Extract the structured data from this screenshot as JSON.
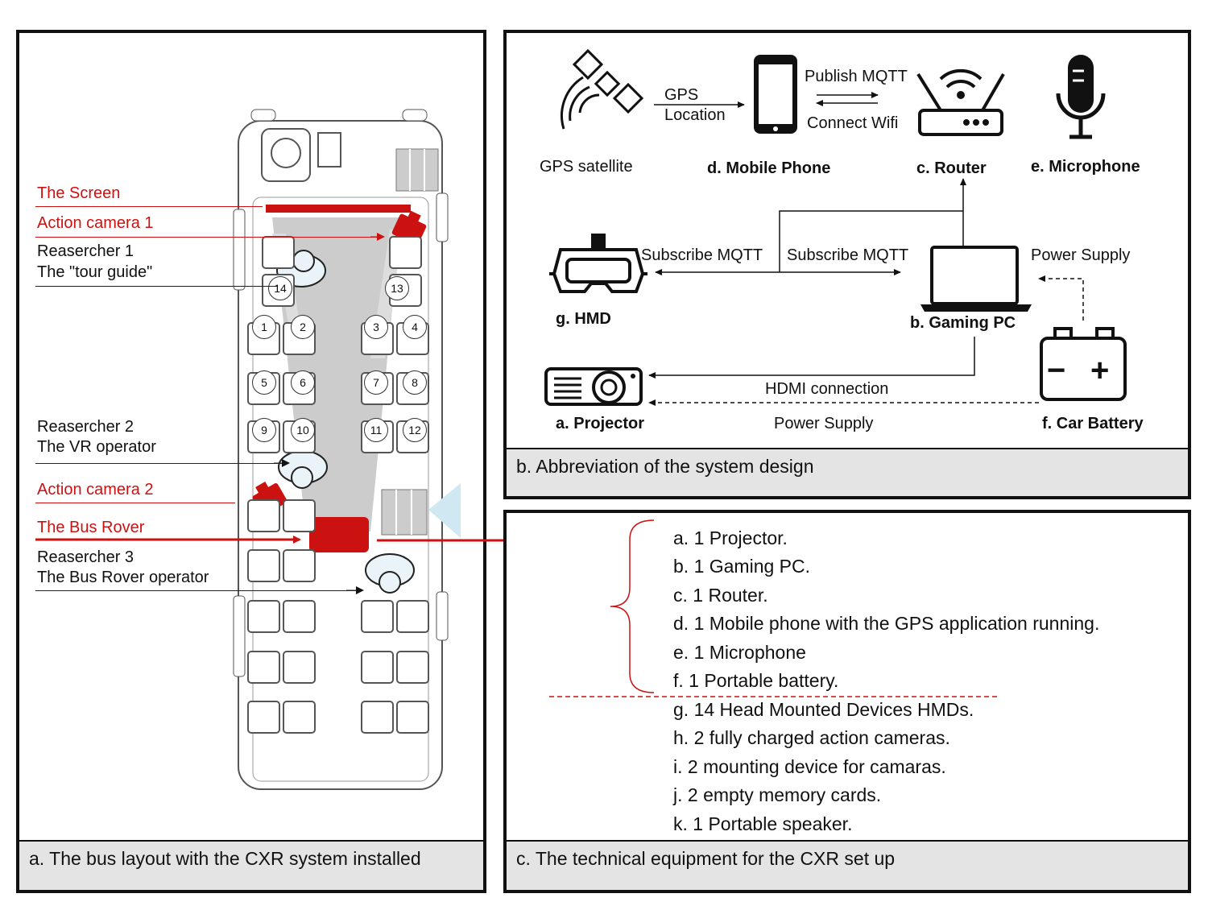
{
  "colors": {
    "accent_red": "#cc1111",
    "caption_bg": "#e4e4e4",
    "cone_gray": "#cccccc",
    "marker_blue": "#cfe8f2"
  },
  "panel_a": {
    "caption": "a. The bus layout with the CXR system installed",
    "labels": {
      "screen": "The Screen",
      "action_camera_1": "Action camera 1",
      "researcher_1_title": "Reasercher 1",
      "researcher_1_role": "The \"tour guide\"",
      "researcher_2_title": "Reasercher 2",
      "researcher_2_role": "The VR operator",
      "action_camera_2": "Action camera 2",
      "bus_rover": "The Bus Rover",
      "researcher_3_title": "Reasercher 3",
      "researcher_3_role": "The Bus Rover operator"
    },
    "seat_numbers": [
      "14",
      "13",
      "1",
      "2",
      "3",
      "4",
      "5",
      "6",
      "7",
      "8",
      "9",
      "10",
      "11",
      "12"
    ]
  },
  "panel_b": {
    "caption": "b. Abbreviation of the system design",
    "nodes": {
      "satellite": "GPS satellite",
      "phone": "d. Mobile Phone",
      "router": "c. Router",
      "microphone": "e. Microphone",
      "hmd": "g. HMD",
      "gaming_pc": "b. Gaming PC",
      "projector": "a. Projector",
      "battery": "f. Car Battery"
    },
    "edges": {
      "gps_line1": "GPS",
      "gps_line2": "Location",
      "publish": "Publish MQTT",
      "connect": "Connect Wifi",
      "subscribe_left": "Subscribe MQTT",
      "subscribe_right": "Subscribe MQTT",
      "power_supply_pc": "Power Supply",
      "hdmi": "HDMI connection",
      "power_supply_projector": "Power Supply"
    },
    "battery_symbols": {
      "minus": "−",
      "plus": "+"
    }
  },
  "panel_c": {
    "caption": "c. The technical equipment for the CXR set up",
    "items": [
      "a. 1 Projector.",
      "b. 1 Gaming PC.",
      "c. 1 Router.",
      "d. 1 Mobile phone with the GPS application running.",
      "e. 1 Microphone",
      "f.  1 Portable battery.",
      "g. 14 Head Mounted Devices HMDs.",
      "h. 2 fully charged action cameras.",
      "i.  2 mounting device for camaras.",
      "j.  2 empty memory cards.",
      "k. 1 Portable speaker."
    ]
  }
}
